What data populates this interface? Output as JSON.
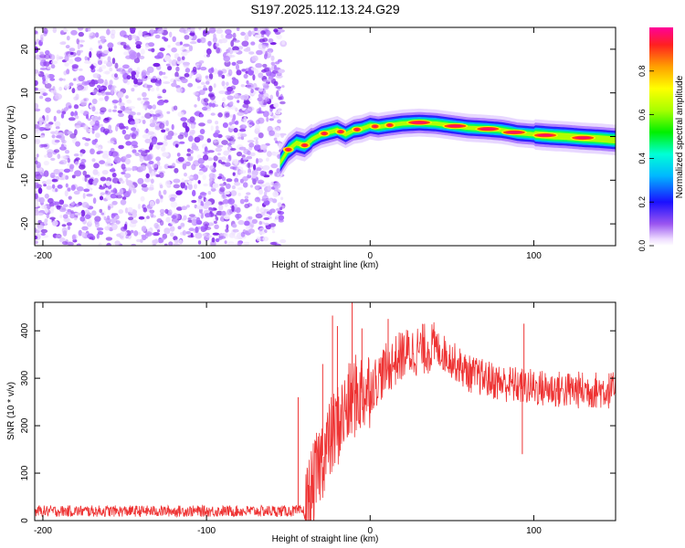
{
  "title": "S197.2025.112.13.24.G29",
  "chart_data": [
    {
      "type": "heatmap",
      "name": "spectrogram",
      "xlabel": "Height of straight line (km)",
      "ylabel": "Frequency (Hz)",
      "xlim": [
        -205,
        150
      ],
      "ylim": [
        -25,
        25
      ],
      "xticks": [
        -200,
        -100,
        0,
        100
      ],
      "yticks": [
        -20,
        -10,
        0,
        10,
        20
      ],
      "noise_region_x": [
        -205,
        -53
      ],
      "signal_ridge": {
        "x": [
          -55,
          -50,
          -45,
          -40,
          -35,
          -30,
          -25,
          -20,
          -15,
          -10,
          -5,
          0,
          5,
          10,
          20,
          30,
          40,
          50,
          60,
          70,
          80,
          85,
          90,
          100,
          110,
          120,
          130,
          140,
          150
        ],
        "freq": [
          -6,
          -3,
          -1.5,
          -2,
          -0.5,
          0.5,
          1.0,
          1.5,
          0.5,
          1.5,
          1.8,
          2.5,
          2.2,
          2.5,
          3.0,
          3.2,
          3.0,
          2.5,
          2.0,
          1.8,
          1.5,
          1.2,
          0.8,
          0.5,
          0.2,
          0.0,
          -0.3,
          -0.5,
          -0.8
        ]
      },
      "colorbar": {
        "label": "Normalized spectral amplitude",
        "range": [
          0.0,
          1.0
        ],
        "ticks": [
          "0.0",
          "0.2",
          "0.4",
          "0.6",
          "0.8"
        ],
        "tick_values": [
          0.0,
          0.2,
          0.4,
          0.6,
          0.8
        ]
      }
    },
    {
      "type": "line",
      "name": "snr",
      "xlabel": "Height of straight line (km)",
      "ylabel": "SNR (10 * v/v)",
      "xlim": [
        -205,
        150
      ],
      "ylim": [
        0,
        460
      ],
      "xticks": [
        -200,
        -100,
        0,
        100
      ],
      "yticks": [
        0,
        100,
        200,
        300,
        400
      ],
      "color": "#ee3333",
      "trend": {
        "x": [
          -205,
          -40,
          -35,
          -30,
          -20,
          -10,
          0,
          10,
          20,
          30,
          40,
          50,
          60,
          70,
          80,
          100,
          120,
          150
        ],
        "y": [
          20,
          20,
          70,
          130,
          200,
          260,
          280,
          320,
          350,
          360,
          365,
          340,
          310,
          300,
          290,
          280,
          275,
          275
        ]
      },
      "spikes": [
        {
          "x": -44,
          "y": 260
        },
        {
          "x": -29,
          "y": 330
        },
        {
          "x": -23,
          "y": 432
        },
        {
          "x": -20,
          "y": 410
        },
        {
          "x": -11,
          "y": 460
        },
        {
          "x": -5,
          "y": 405
        },
        {
          "x": 11,
          "y": 425
        },
        {
          "x": 94,
          "y": 415
        },
        {
          "x": 93,
          "y": 140
        }
      ]
    }
  ]
}
